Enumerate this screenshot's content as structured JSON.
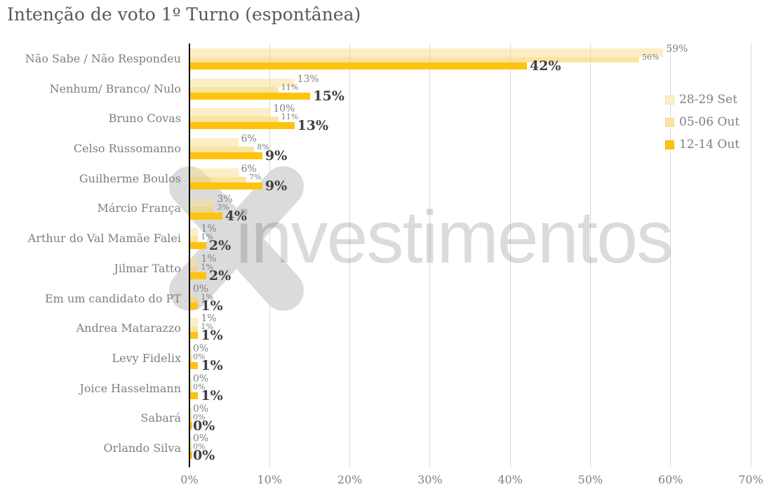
{
  "title": "Intenção de voto 1º Turno (espontânea)",
  "watermark": {
    "icon": "xp-x-logo",
    "text": "investimentos"
  },
  "colors": {
    "series_28_29_set": "#FCEFC6",
    "series_05_06_out": "#F9E4A2",
    "series_12_14_out": "#FDC40E",
    "gridline": "#D9D9D9",
    "axis_line": "#000000",
    "title_text": "#595959",
    "muted_text": "#7F7F7F",
    "bold_label_text": "#3F3F3F",
    "watermark_gray": "#DBDBDB"
  },
  "chart_data": {
    "type": "bar",
    "orientation": "horizontal",
    "title": "Intenção de voto 1º Turno (espontânea)",
    "xlabel": "",
    "ylabel": "",
    "xlim": [
      0,
      70
    ],
    "x_ticks": [
      "0%",
      "10%",
      "20%",
      "30%",
      "40%",
      "50%",
      "60%",
      "70%"
    ],
    "grid": true,
    "legend_position": "right",
    "value_suffix": "%",
    "categories": [
      "Não Sabe / Não Respondeu",
      "Nenhum/ Branco/ Nulo",
      "Bruno Covas",
      "Celso Russomanno",
      "Guilherme Boulos",
      "Márcio França",
      "Arthur do Val Mamãe Falei",
      "Jilmar Tatto",
      "Em um candidato do PT",
      "Andrea Matarazzo",
      "Levy Fidelix",
      "Joice Hasselmann",
      "Sabará",
      "Orlando Silva"
    ],
    "series": [
      {
        "name": "28-29 Set",
        "legend_color": "#FCEFC6",
        "bar_rgba": "rgba(250,224,142,0.5)",
        "values": [
          59,
          13,
          10,
          6,
          6,
          3,
          1,
          1,
          0,
          1,
          0,
          0,
          0,
          0
        ]
      },
      {
        "name": "05-06 Out",
        "legend_color": "#F9E4A2",
        "bar_rgba": "rgba(245,210,100,0.6)",
        "values": [
          56,
          11,
          11,
          8,
          7,
          3,
          1,
          1,
          1,
          1,
          0,
          0,
          0,
          0
        ]
      },
      {
        "name": "12-14 Out",
        "legend_color": "#FDC40E",
        "bar_rgba": "rgba(253,196,14,1)",
        "values": [
          42,
          15,
          13,
          9,
          9,
          4,
          2,
          2,
          1,
          1,
          1,
          1,
          0,
          0
        ]
      }
    ]
  }
}
